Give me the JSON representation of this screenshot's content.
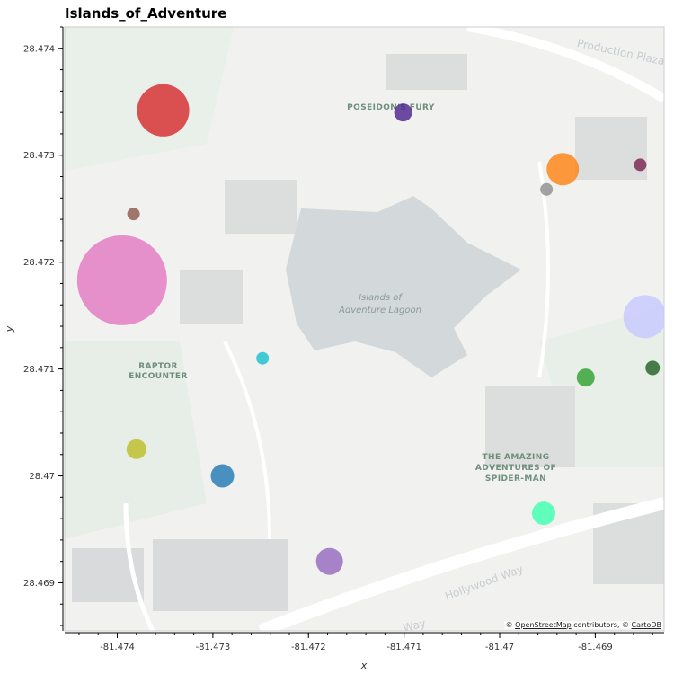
{
  "title": "Islands_of_Adventure",
  "map_labels": {
    "poseidon": "POSEIDON'S FURY",
    "lagoon_1": "Islands of",
    "lagoon_2": "Adventure Lagoon",
    "raptor_1": "RAPTOR",
    "raptor_2": "ENCOUNTER",
    "spider_1": "THE AMAZING",
    "spider_2": "ADVENTURES OF",
    "spider_3": "SPIDER-MAN",
    "hollywood": "Hollywood Way",
    "production": "Production Plaza",
    "way": "Way"
  },
  "attribution": {
    "prefix": "© ",
    "osm": "OpenStreetMap",
    "middle": " contributors, © ",
    "carto": "CartoDB"
  },
  "chart_data": {
    "type": "scatter",
    "title": "Islands_of_Adventure",
    "xlabel": "x",
    "ylabel": "y",
    "xlim": [
      -81.47455,
      -81.46828
    ],
    "ylim": [
      28.46855,
      28.4742
    ],
    "x_ticks": [
      -81.474,
      -81.473,
      -81.472,
      -81.471,
      -81.47,
      -81.469
    ],
    "x_tick_labels": [
      "-81.474",
      "-81.473",
      "-81.472",
      "-81.471",
      "-81.47",
      "-81.469"
    ],
    "y_ticks": [
      28.469,
      28.47,
      28.471,
      28.472,
      28.473,
      28.474
    ],
    "y_tick_labels": [
      "28.469",
      "28.47",
      "28.471",
      "28.472",
      "28.473",
      "28.474"
    ],
    "points": [
      {
        "x": -81.47352,
        "y": 28.47342,
        "size": 29,
        "color": "#d62728"
      },
      {
        "x": -81.47101,
        "y": 28.4734,
        "size": 10,
        "color": "#4b1f8f"
      },
      {
        "x": -81.46934,
        "y": 28.47287,
        "size": 18,
        "color": "#ff7f0e"
      },
      {
        "x": -81.46853,
        "y": 28.47291,
        "size": 7,
        "color": "#7b1f4f"
      },
      {
        "x": -81.46951,
        "y": 28.47268,
        "size": 7,
        "color": "#8c8c8c"
      },
      {
        "x": -81.47383,
        "y": 28.47245,
        "size": 7,
        "color": "#8c564b"
      },
      {
        "x": -81.47395,
        "y": 28.47183,
        "size": 50,
        "color": "#e377c2"
      },
      {
        "x": -81.46848,
        "y": 28.47149,
        "size": 24,
        "color": "#c5c8ff"
      },
      {
        "x": -81.47248,
        "y": 28.4711,
        "size": 7,
        "color": "#17becf"
      },
      {
        "x": -81.4691,
        "y": 28.47092,
        "size": 10,
        "color": "#2ca02c"
      },
      {
        "x": -81.4684,
        "y": 28.47101,
        "size": 8,
        "color": "#1e5e1e"
      },
      {
        "x": -81.4738,
        "y": 28.47025,
        "size": 11,
        "color": "#bcbd22"
      },
      {
        "x": -81.4729,
        "y": 28.47,
        "size": 13,
        "color": "#1f77b4"
      },
      {
        "x": -81.46954,
        "y": 28.46965,
        "size": 13,
        "color": "#3dffb0"
      },
      {
        "x": -81.47178,
        "y": 28.4692,
        "size": 15,
        "color": "#9467bd"
      }
    ]
  }
}
